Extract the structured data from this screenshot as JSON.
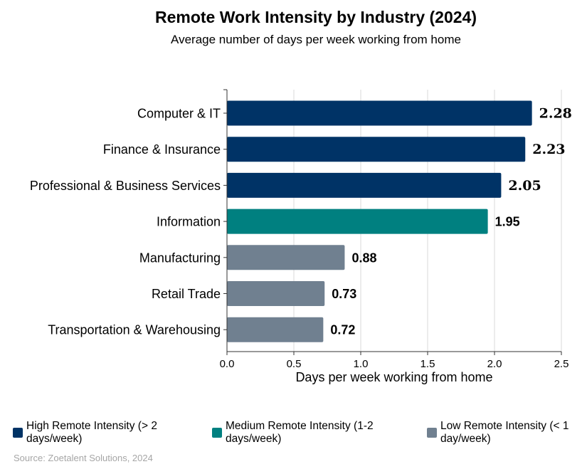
{
  "chart_data": {
    "type": "bar",
    "orientation": "horizontal",
    "title": "Remote Work Intensity by Industry (2024)",
    "subtitle": "Average number of days per week working from home",
    "xlabel": "Days per week working from home",
    "ylabel": "",
    "xlim": [
      0,
      2.5
    ],
    "xticks": [
      "0.0",
      "0.5",
      "1.0",
      "1.5",
      "2.0",
      "2.5"
    ],
    "grid": "vertical",
    "categories": [
      "Computer & IT",
      "Finance & Insurance",
      "Professional & Business Services",
      "Information",
      "Manufacturing",
      "Retail Trade",
      "Transportation & Warehousing"
    ],
    "values": [
      2.28,
      2.23,
      2.05,
      1.95,
      0.88,
      0.73,
      0.72
    ],
    "value_labels": [
      "2.28",
      "2.23",
      "2.05",
      "1.95",
      "0.88",
      "0.73",
      "0.72"
    ],
    "groups": [
      "high",
      "high",
      "high",
      "medium",
      "low",
      "low",
      "low"
    ],
    "legend_placement": "bottom",
    "legend": [
      {
        "key": "high",
        "label": "High Remote Intensity (> 2 days/week)",
        "color": "#003366"
      },
      {
        "key": "medium",
        "label": "Medium Remote Intensity (1-2 days/week)",
        "color": "#008080"
      },
      {
        "key": "low",
        "label": "Low Remote Intensity (< 1 day/week)",
        "color": "#708090"
      }
    ]
  },
  "source": "Source: Zoetalent Solutions, 2024"
}
